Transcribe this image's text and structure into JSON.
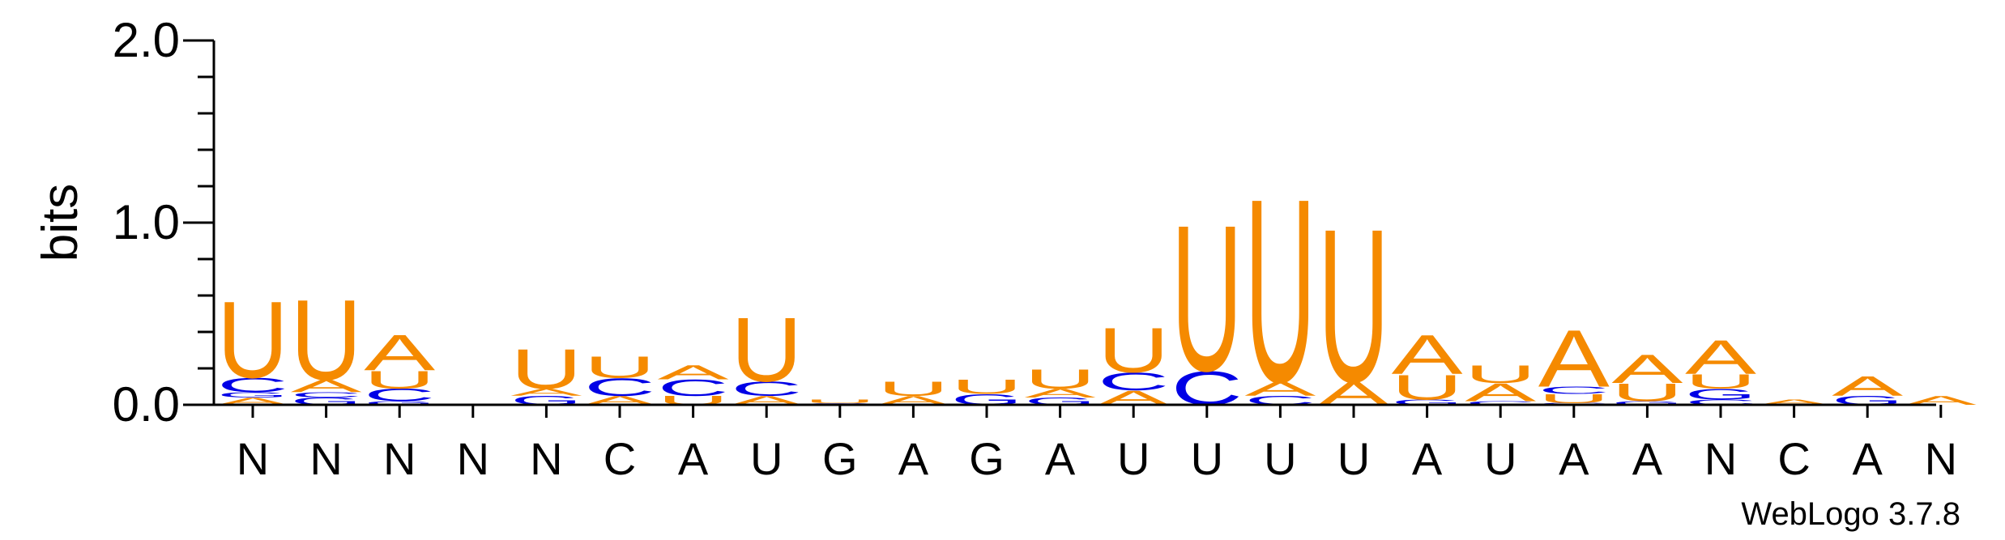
{
  "chart_data": {
    "type": "sequence-logo",
    "ylabel": "bits",
    "ylim": [
      0,
      2.0
    ],
    "yticks": [
      {
        "value": 0.0,
        "label": "0.0"
      },
      {
        "value": 1.0,
        "label": "1.0"
      },
      {
        "value": 2.0,
        "label": "2.0"
      }
    ],
    "xlabels": [
      "N",
      "N",
      "N",
      "N",
      "N",
      "C",
      "A",
      "U",
      "G",
      "A",
      "G",
      "A",
      "U",
      "U",
      "U",
      "U",
      "A",
      "U",
      "A",
      "A",
      "N",
      "C",
      "A",
      "N"
    ],
    "credit": "WebLogo 3.7.8",
    "colors": {
      "U": "#f58a00",
      "A": "#f58a00",
      "C": "#0000e6",
      "G": "#0000e6"
    },
    "positions": [
      {
        "stack": [
          [
            "A",
            0.04
          ],
          [
            "G",
            0.03
          ],
          [
            "C",
            0.08
          ],
          [
            "U",
            0.43
          ]
        ]
      },
      {
        "stack": [
          [
            "G",
            0.04
          ],
          [
            "C",
            0.03
          ],
          [
            "A",
            0.07
          ],
          [
            "U",
            0.45
          ]
        ]
      },
      {
        "stack": [
          [
            "G",
            0.02
          ],
          [
            "C",
            0.07
          ],
          [
            "U",
            0.1
          ],
          [
            "A",
            0.2
          ]
        ]
      },
      {
        "stack": []
      },
      {
        "stack": [
          [
            "G",
            0.05
          ],
          [
            "A",
            0.04
          ],
          [
            "U",
            0.22
          ]
        ]
      },
      {
        "stack": [
          [
            "A",
            0.05
          ],
          [
            "C",
            0.1
          ],
          [
            "U",
            0.12
          ]
        ]
      },
      {
        "stack": [
          [
            "U",
            0.05
          ],
          [
            "C",
            0.09
          ],
          [
            "A",
            0.08
          ]
        ]
      },
      {
        "stack": [
          [
            "A",
            0.05
          ],
          [
            "C",
            0.08
          ],
          [
            "U",
            0.36
          ]
        ]
      },
      {
        "stack": [
          [
            "G",
            0.01
          ],
          [
            "U",
            0.02
          ]
        ]
      },
      {
        "stack": [
          [
            "A",
            0.05
          ],
          [
            "U",
            0.08
          ]
        ]
      },
      {
        "stack": [
          [
            "G",
            0.06
          ],
          [
            "U",
            0.08
          ]
        ]
      },
      {
        "stack": [
          [
            "G",
            0.04
          ],
          [
            "A",
            0.05
          ],
          [
            "U",
            0.11
          ]
        ]
      },
      {
        "stack": [
          [
            "A",
            0.08
          ],
          [
            "C",
            0.1
          ],
          [
            "U",
            0.25
          ]
        ]
      },
      {
        "stack": [
          [
            "C",
            0.19
          ],
          [
            "U",
            0.82
          ]
        ]
      },
      {
        "stack": [
          [
            "C",
            0.05
          ],
          [
            "A",
            0.08
          ],
          [
            "U",
            1.03
          ]
        ]
      },
      {
        "stack": [
          [
            "A",
            0.13
          ],
          [
            "U",
            0.86
          ]
        ]
      },
      {
        "stack": [
          [
            "G",
            0.03
          ],
          [
            "U",
            0.14
          ],
          [
            "A",
            0.22
          ]
        ]
      },
      {
        "stack": [
          [
            "C",
            0.02
          ],
          [
            "A",
            0.1
          ],
          [
            "U",
            0.1
          ]
        ]
      },
      {
        "stack": [
          [
            "C",
            0.01
          ],
          [
            "U",
            0.05
          ],
          [
            "C",
            0.04
          ],
          [
            "A",
            0.32
          ]
        ]
      },
      {
        "stack": [
          [
            "G",
            0.02
          ],
          [
            "U",
            0.1
          ],
          [
            "A",
            0.16
          ]
        ]
      },
      {
        "stack": [
          [
            "C",
            0.03
          ],
          [
            "G",
            0.06
          ],
          [
            "U",
            0.08
          ],
          [
            "A",
            0.19
          ]
        ]
      },
      {
        "stack": [
          [
            "A",
            0.03
          ]
        ]
      },
      {
        "stack": [
          [
            "G",
            0.05
          ],
          [
            "A",
            0.11
          ]
        ]
      },
      {
        "stack": [
          [
            "A",
            0.05
          ]
        ]
      }
    ]
  }
}
